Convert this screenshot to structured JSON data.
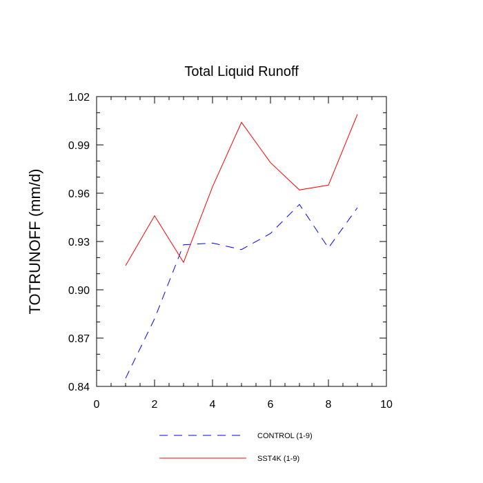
{
  "chart_data": {
    "type": "line",
    "title": "Total Liquid Runoff",
    "xlabel": "",
    "ylabel": "TOTRUNOFF  (mm/d)",
    "xlim": [
      0,
      10
    ],
    "ylim": [
      0.84,
      1.02
    ],
    "xticks": [
      0,
      2,
      4,
      6,
      8,
      10
    ],
    "xtick_labels": [
      "0",
      "2",
      "4",
      "6",
      "8",
      "10"
    ],
    "yticks": [
      0.84,
      0.87,
      0.9,
      0.93,
      0.96,
      0.99,
      1.02
    ],
    "ytick_labels": [
      "0.84",
      "0.87",
      "0.90",
      "0.93",
      "0.96",
      "0.99",
      "1.02"
    ],
    "grid": false,
    "legend_position": "bottom",
    "series": [
      {
        "name": "CONTROL (1-9)",
        "color": "#0000ff",
        "style": "dashed",
        "x": [
          1,
          2,
          3,
          4,
          5,
          6,
          7,
          8,
          9
        ],
        "values": [
          0.845,
          0.882,
          0.928,
          0.929,
          0.925,
          0.935,
          0.953,
          0.926,
          0.951
        ]
      },
      {
        "name": "SST4K (1-9)",
        "color": "#ff0000",
        "style": "solid",
        "x": [
          1,
          2,
          3,
          4,
          5,
          6,
          7,
          8,
          9
        ],
        "values": [
          0.915,
          0.946,
          0.917,
          0.964,
          1.004,
          0.979,
          0.962,
          0.965,
          1.009
        ]
      }
    ]
  }
}
